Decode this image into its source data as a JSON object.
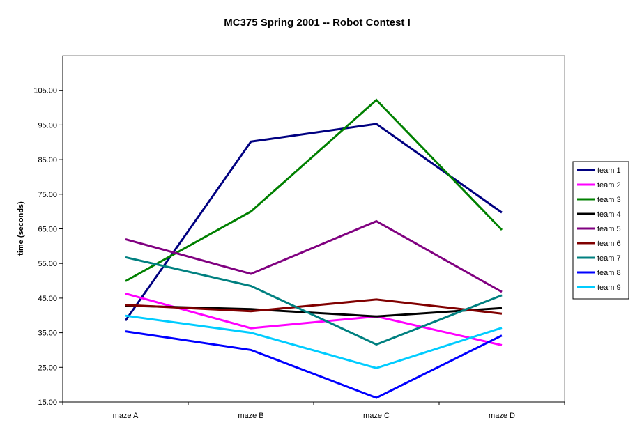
{
  "chart_data": {
    "type": "line",
    "title": "MC375 Spring 2001 -- Robot Contest I",
    "xlabel": "",
    "ylabel": "time (seconds)",
    "ylim": [
      15,
      115
    ],
    "yticks": [
      "15.00",
      "25.00",
      "35.00",
      "45.00",
      "55.00",
      "65.00",
      "75.00",
      "85.00",
      "95.00",
      "105.00"
    ],
    "categories": [
      "maze A",
      "maze B",
      "maze C",
      "maze D"
    ],
    "grid": false,
    "legend_position": "right",
    "series": [
      {
        "name": "team 1",
        "color": "#000080",
        "values": [
          38.5,
          90.2,
          95.3,
          69.7
        ]
      },
      {
        "name": "team 2",
        "color": "#ff00ff",
        "values": [
          46.3,
          36.3,
          39.7,
          31.4
        ]
      },
      {
        "name": "team 3",
        "color": "#008000",
        "values": [
          49.9,
          70.0,
          102.2,
          64.7
        ]
      },
      {
        "name": "team 4",
        "color": "#000000",
        "values": [
          42.8,
          41.8,
          39.7,
          42.1
        ]
      },
      {
        "name": "team 5",
        "color": "#800080",
        "values": [
          62.0,
          52.0,
          67.2,
          46.8
        ]
      },
      {
        "name": "team 6",
        "color": "#800000",
        "values": [
          43.0,
          41.2,
          44.6,
          40.5
        ]
      },
      {
        "name": "team 7",
        "color": "#008080",
        "values": [
          56.8,
          48.5,
          31.6,
          45.8
        ]
      },
      {
        "name": "team 8",
        "color": "#0000ff",
        "values": [
          35.4,
          30.0,
          16.2,
          34.2
        ]
      },
      {
        "name": "team 9",
        "color": "#00ccff",
        "values": [
          39.9,
          35.0,
          24.8,
          36.4
        ]
      }
    ]
  }
}
